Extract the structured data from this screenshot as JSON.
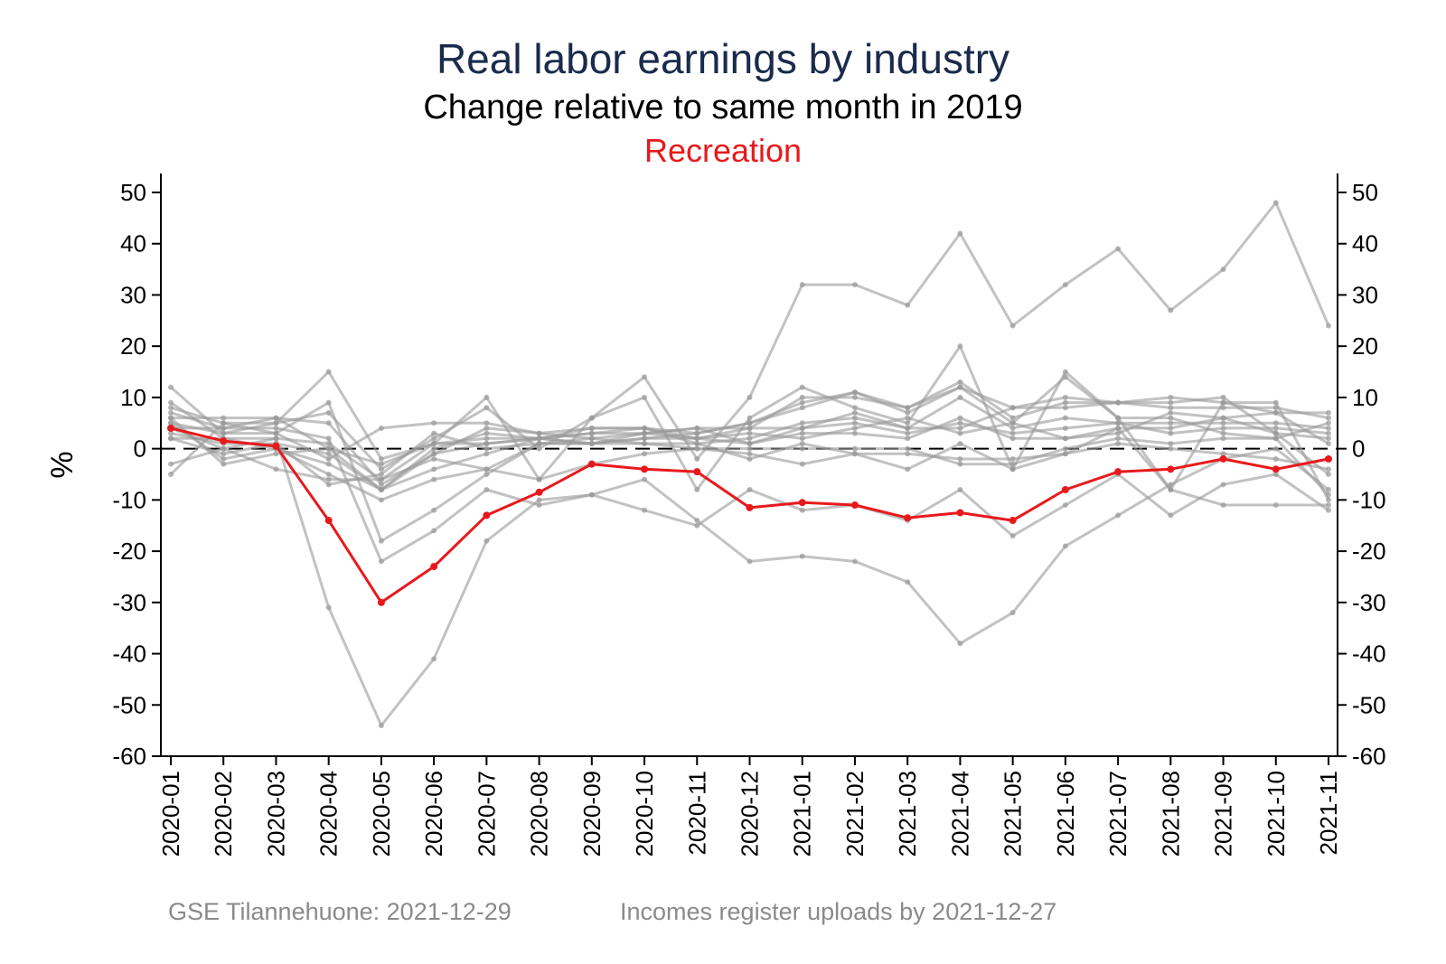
{
  "colors": {
    "title": "#1a2b4c",
    "highlight": "#e8191c",
    "background_lines": "#9a9a9a",
    "zero_line": "#000000"
  },
  "chart_data": {
    "type": "line",
    "title": "Real labor earnings by industry",
    "subtitle": "Change relative to same month in 2019",
    "highlight_label": "Recreation",
    "ylabel": "%",
    "xlabel": "",
    "ylim": [
      -60,
      50
    ],
    "yticks": [
      50,
      40,
      30,
      20,
      10,
      0,
      -10,
      -20,
      -30,
      -40,
      -50,
      -60
    ],
    "ytick_labels": [
      "50",
      "40",
      "30",
      "20",
      "10",
      "0",
      "-10",
      "-20",
      "-30",
      "-40",
      "-50",
      "-60"
    ],
    "grid": false,
    "reference_line": 0,
    "categories": [
      "2020-01",
      "2020-02",
      "2020-03",
      "2020-04",
      "2020-05",
      "2020-06",
      "2020-07",
      "2020-08",
      "2020-09",
      "2020-10",
      "2020-11",
      "2020-12",
      "2021-01",
      "2021-02",
      "2021-03",
      "2021-04",
      "2021-05",
      "2021-06",
      "2021-07",
      "2021-08",
      "2021-09",
      "2021-10",
      "2021-11"
    ],
    "highlight_series": {
      "values": [
        4,
        1.5,
        0.5,
        -14,
        -30,
        -23,
        -13,
        -8.5,
        -3,
        -4,
        -4.5,
        -11.5,
        -10.5,
        -11,
        -13.5,
        -12.5,
        -14,
        -8,
        -4.5,
        -4,
        -2,
        -4,
        -2
      ]
    },
    "background_series": [
      {
        "values": [
          12,
          3,
          5,
          15,
          -2,
          1,
          10,
          -6,
          6,
          14,
          -2,
          10,
          32,
          32,
          28,
          42,
          24,
          32,
          39,
          27,
          35,
          48,
          24
        ]
      },
      {
        "values": [
          9,
          2,
          2,
          -31,
          -54,
          -41,
          -18,
          -10,
          -9,
          -6,
          -14,
          -22,
          -21,
          -22,
          -26,
          -38,
          -32,
          -19,
          -13,
          -7,
          -2,
          0,
          -8
        ]
      },
      {
        "values": [
          8,
          5,
          5,
          7,
          -4,
          2,
          8,
          0,
          6,
          10,
          -8,
          6,
          12,
          8,
          5,
          20,
          -4,
          15,
          6,
          -8,
          9,
          9,
          -10
        ]
      },
      {
        "values": [
          7,
          4,
          6,
          5,
          -7,
          -1,
          4,
          3,
          4,
          4,
          3,
          5,
          9,
          11,
          8,
          13,
          6,
          9,
          9,
          10,
          9,
          7,
          7
        ]
      },
      {
        "values": [
          6,
          6,
          6,
          0,
          -8,
          0,
          3,
          2,
          3,
          3,
          4,
          4,
          10,
          10,
          8,
          12,
          8,
          8,
          9,
          8,
          8,
          8,
          6
        ]
      },
      {
        "values": [
          5,
          3,
          3,
          9,
          -18,
          -12,
          -5,
          1,
          2,
          1,
          1,
          2,
          5,
          6,
          4,
          10,
          4,
          6,
          5,
          5,
          5,
          5,
          4
        ]
      },
      {
        "values": [
          4,
          4,
          4,
          2,
          -22,
          -16,
          -8,
          -11,
          -9,
          -12,
          -15,
          -8,
          -12,
          -11,
          -14,
          -8,
          -17,
          -11,
          -5,
          -13,
          -7,
          -5,
          -12
        ]
      },
      {
        "values": [
          3,
          1,
          1,
          -7,
          -5,
          3,
          0,
          1,
          1,
          2,
          2,
          4,
          4,
          5,
          3,
          5,
          3,
          4,
          5,
          3,
          4,
          4,
          3
        ]
      },
      {
        "values": [
          5,
          -2,
          0,
          -5,
          -10,
          -6,
          -4,
          1,
          1,
          3,
          2,
          1,
          3,
          3,
          2,
          6,
          2,
          2,
          4,
          4,
          6,
          3,
          2
        ]
      },
      {
        "values": [
          2,
          2,
          0,
          -3,
          -8,
          -4,
          -1,
          2,
          1,
          1,
          0,
          0,
          0,
          0,
          0,
          -3,
          -3,
          0,
          2,
          1,
          2,
          2,
          5
        ]
      },
      {
        "values": [
          -3,
          0,
          2,
          1,
          -6,
          1,
          1,
          2,
          3,
          4,
          2,
          3,
          2,
          4,
          6,
          3,
          5,
          2,
          3,
          7,
          6,
          7,
          1
        ]
      },
      {
        "values": [
          -5,
          5,
          3,
          -2,
          4,
          5,
          5,
          3,
          2,
          3,
          4,
          1,
          4,
          7,
          4,
          4,
          8,
          10,
          9,
          9,
          10,
          3,
          -5
        ]
      },
      {
        "values": [
          4,
          0,
          -4,
          -6,
          -6,
          -2,
          -4,
          -6,
          -3,
          -1,
          0,
          -1,
          -3,
          -1,
          -1,
          -2,
          -2,
          -1,
          1,
          0,
          -1,
          -2,
          -4
        ]
      },
      {
        "values": [
          6,
          -3,
          -1,
          0,
          -3,
          1,
          2,
          2,
          1,
          2,
          3,
          5,
          8,
          11,
          7,
          12,
          5,
          14,
          6,
          6,
          3,
          2,
          -9
        ]
      },
      {
        "values": [
          2,
          -1,
          1,
          -1,
          -8,
          -1,
          1,
          2,
          4,
          4,
          1,
          -2,
          1,
          -1,
          -4,
          1,
          -4,
          -1,
          4,
          -8,
          -11,
          -11,
          -11
        ]
      }
    ]
  },
  "footer": {
    "left": "GSE Tilannehuone: 2021-12-29",
    "right": "Incomes register uploads by 2021-12-27"
  }
}
